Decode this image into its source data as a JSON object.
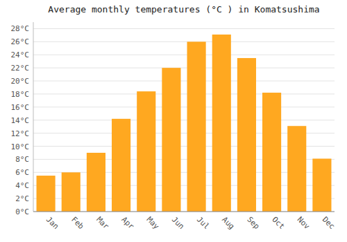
{
  "chart_data": {
    "type": "bar",
    "title": "Average monthly temperatures (°C ) in Komatsushima",
    "categories": [
      "Jan",
      "Feb",
      "Mar",
      "Apr",
      "May",
      "Jun",
      "Jul",
      "Aug",
      "Sep",
      "Oct",
      "Nov",
      "Dec"
    ],
    "values": [
      5.5,
      6.0,
      9.0,
      14.2,
      18.4,
      22.0,
      26.0,
      27.1,
      23.5,
      18.2,
      13.1,
      8.1
    ],
    "color": "#FFA820",
    "ylim": [
      0,
      29
    ],
    "yticks": [
      {
        "value": 0,
        "label": "0°C"
      },
      {
        "value": 2,
        "label": "2°C"
      },
      {
        "value": 4,
        "label": "4°C"
      },
      {
        "value": 6,
        "label": "6°C"
      },
      {
        "value": 8,
        "label": "8°C"
      },
      {
        "value": 10,
        "label": "10°C"
      },
      {
        "value": 12,
        "label": "12°C"
      },
      {
        "value": 14,
        "label": "14°C"
      },
      {
        "value": 16,
        "label": "16°C"
      },
      {
        "value": 18,
        "label": "18°C"
      },
      {
        "value": 20,
        "label": "20°C"
      },
      {
        "value": 22,
        "label": "22°C"
      },
      {
        "value": 24,
        "label": "24°C"
      },
      {
        "value": 26,
        "label": "26°C"
      },
      {
        "value": 28,
        "label": "28°C"
      }
    ],
    "grid": true
  }
}
